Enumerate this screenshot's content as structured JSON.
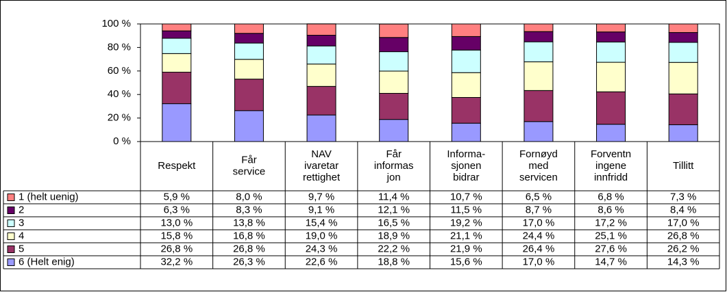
{
  "chart_data": {
    "type": "bar",
    "stacked": true,
    "categories": [
      [
        "Respekt"
      ],
      [
        "Får",
        "service"
      ],
      [
        "NAV",
        "ivaretar",
        "rettighet"
      ],
      [
        "Får",
        "informas",
        "jon"
      ],
      [
        "Informa-",
        "sjonen",
        "bidrar"
      ],
      [
        "Fornøyd",
        "med",
        "servicen"
      ],
      [
        "Forventn",
        "ingene",
        "innfridd"
      ],
      [
        "Tillitt"
      ]
    ],
    "series": [
      {
        "name": "1 (helt uenig)",
        "color": "#ff8080",
        "values": [
          5.9,
          8.0,
          9.7,
          11.4,
          10.7,
          6.5,
          6.8,
          7.3
        ],
        "value_labels": [
          "5,9 %",
          "8,0 %",
          "9,7 %",
          "11,4 %",
          "10,7 %",
          "6,5 %",
          "6,8 %",
          "7,3 %"
        ]
      },
      {
        "name": "2",
        "color": "#660066",
        "values": [
          6.3,
          8.3,
          9.1,
          12.1,
          11.5,
          8.7,
          8.6,
          8.4
        ],
        "value_labels": [
          "6,3 %",
          "8,3 %",
          "9,1 %",
          "12,1 %",
          "11,5 %",
          "8,7 %",
          "8,6 %",
          "8,4 %"
        ]
      },
      {
        "name": "3",
        "color": "#ccffff",
        "values": [
          13.0,
          13.8,
          15.4,
          16.5,
          19.2,
          17.0,
          17.2,
          17.0
        ],
        "value_labels": [
          "13,0 %",
          "13,8 %",
          "15,4 %",
          "16,5 %",
          "19,2 %",
          "17,0 %",
          "17,2 %",
          "17,0 %"
        ]
      },
      {
        "name": "4",
        "color": "#ffffcc",
        "values": [
          15.8,
          16.8,
          19.0,
          18.9,
          21.1,
          24.4,
          25.1,
          26.8
        ],
        "value_labels": [
          "15,8 %",
          "16,8 %",
          "19,0 %",
          "18,9 %",
          "21,1 %",
          "24,4 %",
          "25,1 %",
          "26,8 %"
        ]
      },
      {
        "name": "5",
        "color": "#993366",
        "values": [
          26.8,
          26.8,
          24.3,
          22.2,
          21.9,
          26.4,
          27.6,
          26.2
        ],
        "value_labels": [
          "26,8 %",
          "26,8 %",
          "24,3 %",
          "22,2 %",
          "21,9 %",
          "26,4 %",
          "27,6 %",
          "26,2 %"
        ]
      },
      {
        "name": "6 (Helt enig)",
        "color": "#9999ff",
        "values": [
          32.2,
          26.3,
          22.6,
          18.8,
          15.6,
          17.0,
          14.7,
          14.3
        ],
        "value_labels": [
          "32,2 %",
          "26,3 %",
          "22,6 %",
          "18,8 %",
          "15,6 %",
          "17,0 %",
          "14,7 %",
          "14,3 %"
        ]
      }
    ],
    "ylim": [
      0,
      100
    ],
    "yticks": [
      {
        "value": 0,
        "label": "0 %"
      },
      {
        "value": 20,
        "label": "20 %"
      },
      {
        "value": 40,
        "label": "40 %"
      },
      {
        "value": 60,
        "label": "60 %"
      },
      {
        "value": 80,
        "label": "80 %"
      },
      {
        "value": 100,
        "label": "100 %"
      }
    ],
    "grid": false
  }
}
